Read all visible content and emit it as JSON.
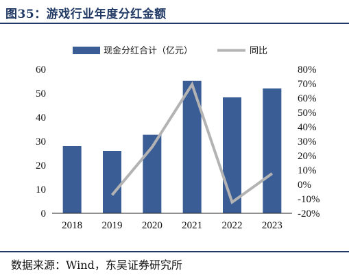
{
  "header": {
    "title": "图35：游戏行业年度分红金额"
  },
  "footer": {
    "source": "数据来源：Wind，东吴证券研究所"
  },
  "colors": {
    "bar": "#3a5d96",
    "line": "#b3b3b3",
    "rule": "#1f3864"
  },
  "chart_data": {
    "type": "bar",
    "categories": [
      "2018",
      "2019",
      "2020",
      "2021",
      "2022",
      "2023"
    ],
    "series": [
      {
        "name": "现金分红合计（亿元）",
        "type": "bar",
        "axis": "left",
        "values": [
          28,
          26,
          32.7,
          55.2,
          48.3,
          52
        ]
      },
      {
        "name": "同比",
        "type": "line",
        "axis": "right",
        "values": [
          null,
          -7.3,
          26,
          69.5,
          -12.3,
          7.6
        ]
      }
    ],
    "left_axis": {
      "ylim": [
        0,
        60
      ],
      "ticks": [
        0,
        10,
        20,
        30,
        40,
        50,
        60
      ],
      "tick_labels": [
        "0",
        "10",
        "20",
        "30",
        "40",
        "50",
        "60"
      ]
    },
    "right_axis": {
      "ylim": [
        -20,
        80
      ],
      "ticks": [
        -20,
        -10,
        0,
        10,
        20,
        30,
        40,
        50,
        60,
        70,
        80
      ],
      "tick_labels": [
        "-20%",
        "-10%",
        "0%",
        "10%",
        "20%",
        "30%",
        "40%",
        "50%",
        "60%",
        "70%",
        "80%"
      ]
    },
    "grid": false,
    "legend": "top"
  }
}
